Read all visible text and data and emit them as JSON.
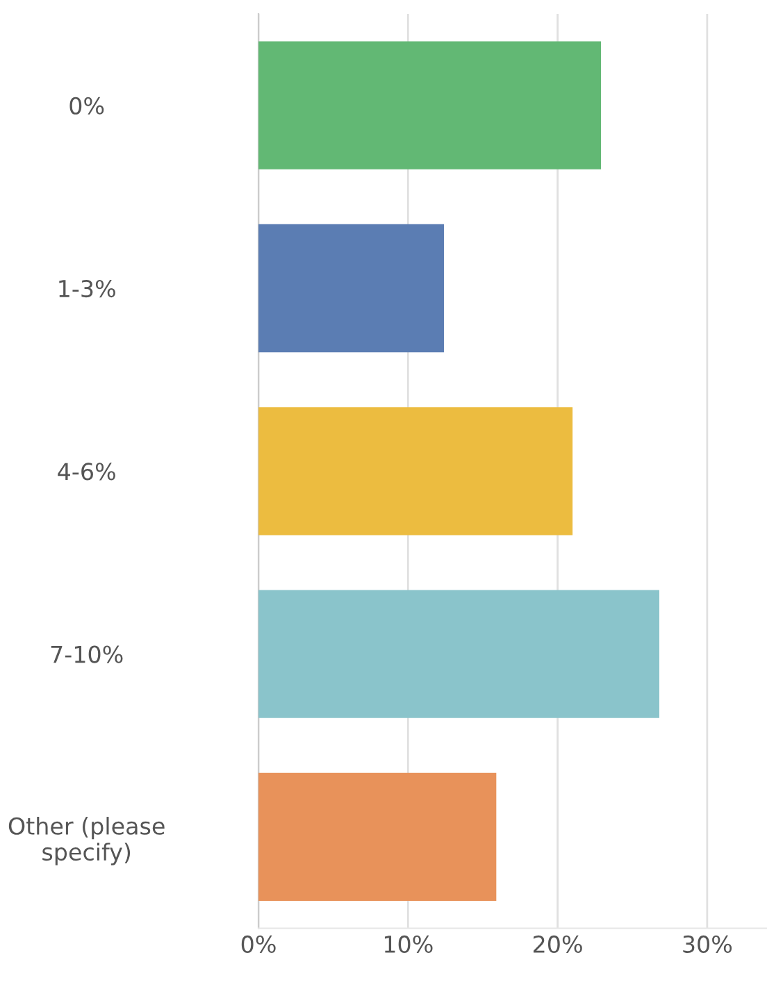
{
  "chart_data": {
    "type": "bar",
    "orientation": "horizontal",
    "categories": [
      "0%",
      "1-3%",
      "4-6%",
      "7-10%",
      "Other (please\nspecify)"
    ],
    "values": [
      22.9,
      12.4,
      21.0,
      26.8,
      15.9
    ],
    "colors": [
      "#62b874",
      "#5b7db3",
      "#ecbc40",
      "#8ac4cb",
      "#e8925a"
    ],
    "xlim": [
      0,
      34
    ],
    "xticks": [
      {
        "value": 0,
        "label": "0%"
      },
      {
        "value": 10,
        "label": "10%"
      },
      {
        "value": 20,
        "label": "20%"
      },
      {
        "value": 30,
        "label": "30%"
      }
    ],
    "grid": "x"
  }
}
